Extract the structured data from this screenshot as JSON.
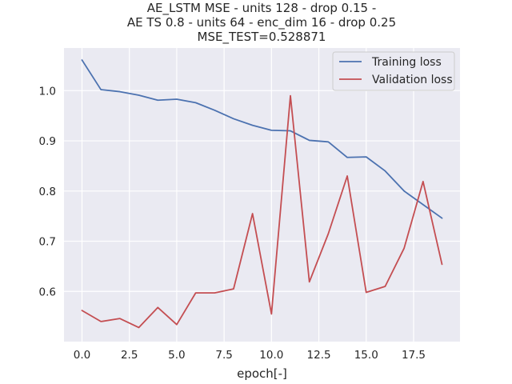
{
  "chart_data": {
    "type": "line",
    "title": [
      "AE_LSTM MSE - units 128 - drop 0.15 -",
      "AE TS 0.8 - units 64 - enc_dim 16 - drop 0.25",
      "MSE_TEST=0.528871"
    ],
    "xlabel": "epoch[-]",
    "ylabel": "",
    "xlim": [
      -0.95,
      19.95
    ],
    "ylim": [
      0.5,
      1.085
    ],
    "xticks": [
      0.0,
      2.5,
      5.0,
      7.5,
      10.0,
      12.5,
      15.0,
      17.5
    ],
    "xtick_labels": [
      "0.0",
      "2.5",
      "5.0",
      "7.5",
      "10.0",
      "12.5",
      "15.0",
      "17.5"
    ],
    "yticks": [
      0.6,
      0.7,
      0.8,
      0.9,
      1.0
    ],
    "ytick_labels": [
      "0.6",
      "0.7",
      "0.8",
      "0.9",
      "1.0"
    ],
    "grid": true,
    "legend_position": "top-right",
    "x": [
      0,
      1,
      2,
      3,
      4,
      5,
      6,
      7,
      8,
      9,
      10,
      11,
      12,
      13,
      14,
      15,
      16,
      17,
      18,
      19
    ],
    "series": [
      {
        "name": "Training loss",
        "color": "#4c72b0",
        "values": [
          1.061,
          1.002,
          0.998,
          0.991,
          0.981,
          0.983,
          0.976,
          0.961,
          0.944,
          0.931,
          0.921,
          0.92,
          0.901,
          0.898,
          0.867,
          0.868,
          0.84,
          0.8,
          0.773,
          0.746
        ]
      },
      {
        "name": "Validation loss",
        "color": "#c44e52",
        "values": [
          0.562,
          0.54,
          0.546,
          0.528,
          0.568,
          0.534,
          0.597,
          0.597,
          0.605,
          0.755,
          0.555,
          0.99,
          0.619,
          0.715,
          0.83,
          0.598,
          0.61,
          0.686,
          0.819,
          0.654
        ]
      }
    ]
  }
}
